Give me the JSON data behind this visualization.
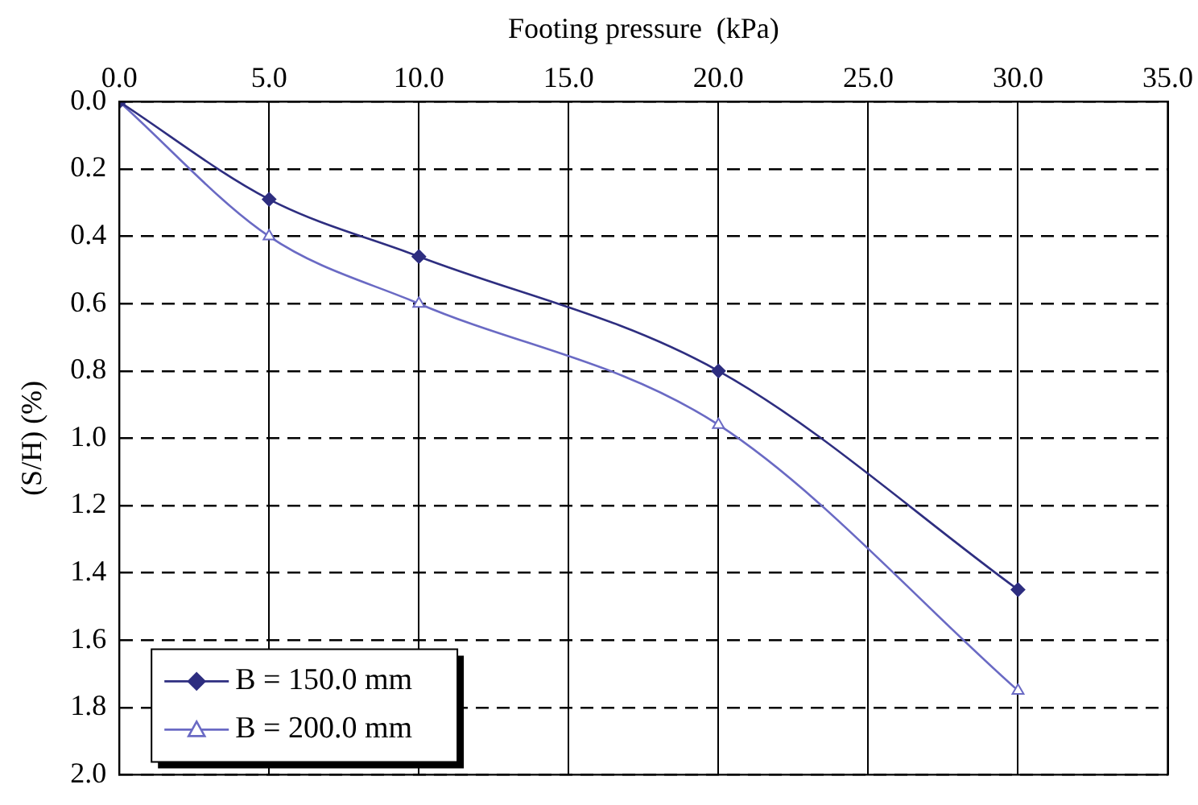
{
  "chart_data": {
    "type": "line",
    "xlabel": "Footing pressure  (kPa)",
    "ylabel": "(S/H) (%)",
    "x": [
      0,
      5,
      10,
      20,
      30
    ],
    "series": [
      {
        "name": "B = 150.0 mm",
        "color": "#2e2e80",
        "marker": "diamond",
        "values": [
          0,
          0.29,
          0.46,
          0.8,
          1.45
        ]
      },
      {
        "name": "B = 200.0 mm",
        "color": "#6a6ac4",
        "marker": "triangle",
        "values": [
          0,
          0.4,
          0.6,
          0.96,
          1.75
        ]
      }
    ],
    "xlim": [
      0,
      35
    ],
    "xticks": [
      {
        "value": 0,
        "label": "0.0"
      },
      {
        "value": 5,
        "label": "5.0"
      },
      {
        "value": 10,
        "label": "10.0"
      },
      {
        "value": 15,
        "label": "15.0"
      },
      {
        "value": 20,
        "label": "20.0"
      },
      {
        "value": 25,
        "label": "25.0"
      },
      {
        "value": 30,
        "label": "30.0"
      },
      {
        "value": 35,
        "label": "35.0"
      }
    ],
    "ylim": [
      2,
      0
    ],
    "yticks": [
      {
        "value": 0,
        "label": "0.0"
      },
      {
        "value": 0.2,
        "label": "0.2"
      },
      {
        "value": 0.4,
        "label": "0.4"
      },
      {
        "value": 0.6,
        "label": "0.6"
      },
      {
        "value": 0.8,
        "label": "0.8"
      },
      {
        "value": 1,
        "label": "1.0"
      },
      {
        "value": 1.2,
        "label": "1.2"
      },
      {
        "value": 1.4,
        "label": "1.4"
      },
      {
        "value": 1.6,
        "label": "1.6"
      },
      {
        "value": 1.8,
        "label": "1.8"
      },
      {
        "value": 2,
        "label": "2.0"
      }
    ],
    "grid": true,
    "legend": "bottom left",
    "line_style": "solid"
  }
}
